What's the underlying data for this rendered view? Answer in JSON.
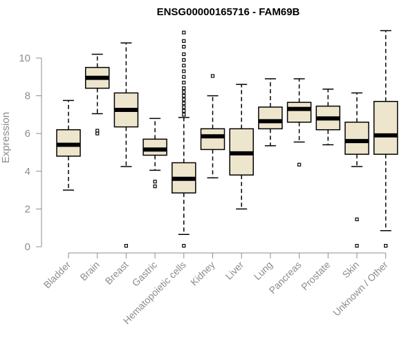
{
  "colors": {
    "box_fill": "#ede6cc",
    "text_gray": "#8c8c8c"
  },
  "chart_data": {
    "type": "boxplot",
    "title": "ENSG00000165716 - FAM69B",
    "xlabel": "",
    "ylabel": "Expression",
    "ylim": [
      0,
      11.5
    ],
    "yticks": [
      0,
      2,
      4,
      6,
      8,
      10
    ],
    "grid": false,
    "categories": [
      "Bladder",
      "Brain",
      "Breast",
      "Gastric",
      "Hematopoietic cells",
      "Kidney",
      "Liver",
      "Lung",
      "Pancreas",
      "Prostate",
      "Skin",
      "Unknown / Other"
    ],
    "boxes": [
      {
        "category": "Bladder",
        "whisker_low": 3.0,
        "q1": 4.8,
        "median": 5.4,
        "q3": 6.2,
        "whisker_high": 7.75,
        "outliers": []
      },
      {
        "category": "Brain",
        "whisker_low": 7.05,
        "q1": 8.4,
        "median": 8.95,
        "q3": 9.5,
        "whisker_high": 10.2,
        "outliers": [
          6.0,
          6.15
        ]
      },
      {
        "category": "Breast",
        "whisker_low": 4.25,
        "q1": 6.35,
        "median": 7.25,
        "q3": 8.15,
        "whisker_high": 10.8,
        "outliers": [
          0.05
        ]
      },
      {
        "category": "Gastric",
        "whisker_low": 4.05,
        "q1": 4.85,
        "median": 5.15,
        "q3": 5.7,
        "whisker_high": 6.8,
        "outliers": [
          3.2,
          3.45
        ]
      },
      {
        "category": "Hematopoietic cells",
        "whisker_low": 0.65,
        "q1": 2.85,
        "median": 3.6,
        "q3": 4.45,
        "whisker_high": 6.85,
        "outliers": [
          0.05,
          7.0,
          7.2,
          7.4,
          7.6,
          7.8,
          8.0,
          8.2,
          8.4,
          8.7,
          9.0,
          9.3,
          9.6,
          9.9,
          10.2,
          10.6,
          10.9,
          11.35
        ]
      },
      {
        "category": "Kidney",
        "whisker_low": 3.65,
        "q1": 5.15,
        "median": 5.85,
        "q3": 6.25,
        "whisker_high": 8.0,
        "outliers": [
          9.05
        ]
      },
      {
        "category": "Liver",
        "whisker_low": 2.0,
        "q1": 3.8,
        "median": 4.95,
        "q3": 6.25,
        "whisker_high": 8.6,
        "outliers": []
      },
      {
        "category": "Lung",
        "whisker_low": 5.35,
        "q1": 6.25,
        "median": 6.65,
        "q3": 7.4,
        "whisker_high": 8.9,
        "outliers": []
      },
      {
        "category": "Pancreas",
        "whisker_low": 5.55,
        "q1": 6.6,
        "median": 7.3,
        "q3": 7.65,
        "whisker_high": 8.9,
        "outliers": [
          4.35
        ]
      },
      {
        "category": "Prostate",
        "whisker_low": 5.4,
        "q1": 6.2,
        "median": 6.8,
        "q3": 7.45,
        "whisker_high": 8.35,
        "outliers": []
      },
      {
        "category": "Skin",
        "whisker_low": 4.25,
        "q1": 4.9,
        "median": 5.6,
        "q3": 6.6,
        "whisker_high": 8.15,
        "outliers": [
          0.05,
          1.45
        ]
      },
      {
        "category": "Unknown / Other",
        "whisker_low": 0.85,
        "q1": 4.9,
        "median": 5.9,
        "q3": 7.7,
        "whisker_high": 11.45,
        "outliers": [
          0.05
        ]
      }
    ]
  }
}
